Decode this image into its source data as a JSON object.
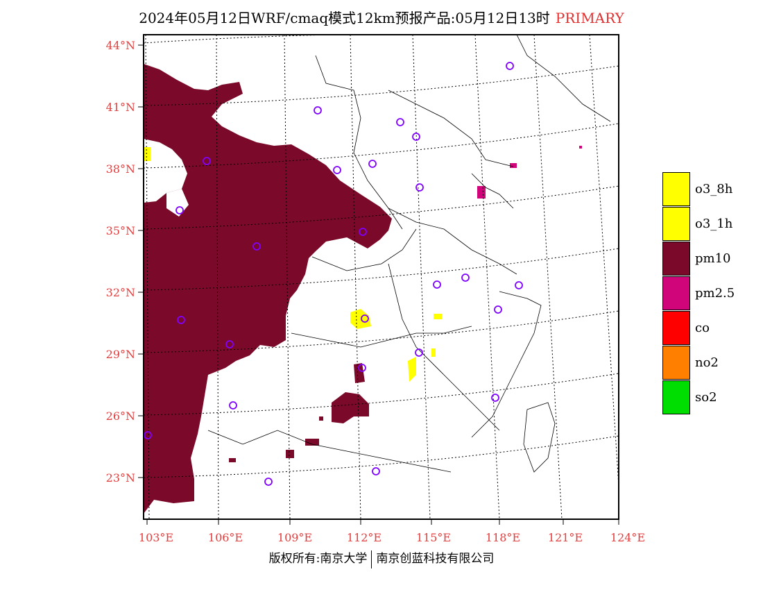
{
  "header": {
    "title": "2024年05月12日WRF/cmaq模式12km预报产品:05月12日13时",
    "tag": "PRIMARY"
  },
  "axes": {
    "lat_labels": [
      "44°N",
      "41°N",
      "38°N",
      "35°N",
      "32°N",
      "29°N",
      "26°N",
      "23°N"
    ],
    "lon_labels": [
      "103°E",
      "106°E",
      "109°E",
      "112°E",
      "115°E",
      "118°E",
      "121°E",
      "124°E"
    ]
  },
  "legend": {
    "items": [
      {
        "label": "o3_8h",
        "color": "#ffff00"
      },
      {
        "label": "o3_1h",
        "color": "#ffff00"
      },
      {
        "label": "pm10",
        "color": "#7b0a2a"
      },
      {
        "label": "pm2.5",
        "color": "#d0057a"
      },
      {
        "label": "co",
        "color": "#ff0000"
      },
      {
        "label": "no2",
        "color": "#ff8000"
      },
      {
        "label": "so2",
        "color": "#00dd00"
      }
    ]
  },
  "footer": {
    "left": "版权所有:南京大学",
    "right": "南京创蓝科技有限公司"
  },
  "colors": {
    "pm10": "#7b0a2a",
    "pm25": "#d0057a",
    "o3": "#ffff00",
    "station_marker": "#8000ff",
    "axis_label": "#e04040"
  }
}
